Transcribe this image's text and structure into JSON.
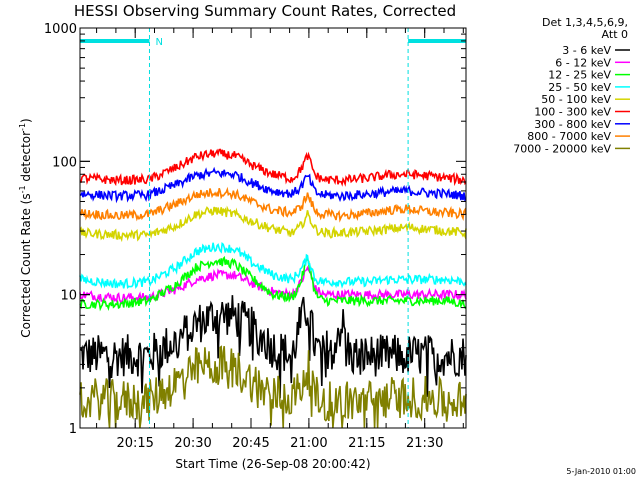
{
  "chart_data": {
    "type": "line",
    "title": "HESSI Observing Summary Count Rates, Corrected",
    "xlabel": "Start Time (26-Sep-08 20:00:42)",
    "ylabel": "Corrected Count Rate (s⁻¹ detector⁻¹)",
    "ylabel_pre": "Corrected Count Rate (s",
    "ylabel_mid": " detector",
    "ylabel_sup": "-1",
    "ylabel_post": ")",
    "yscale": "log",
    "ylim": [
      1,
      1000
    ],
    "xlim_minutes": [
      0,
      100
    ],
    "x_ticks": [
      {
        "label": "20:15",
        "t": 14.3
      },
      {
        "label": "20:30",
        "t": 29.3
      },
      {
        "label": "20:45",
        "t": 44.3
      },
      {
        "label": "21:00",
        "t": 59.3
      },
      {
        "label": "21:15",
        "t": 74.3
      },
      {
        "label": "21:30",
        "t": 89.3
      }
    ],
    "y_ticks": [
      {
        "label": "1",
        "v": 1
      },
      {
        "label": "10",
        "v": 10
      },
      {
        "label": "100",
        "v": 100
      },
      {
        "label": "1000",
        "v": 1000
      }
    ],
    "legend_header": [
      "Det 1,3,4,5,6,9,",
      "Att 0"
    ],
    "legend_position": "right",
    "timestamp": "5-Jan-2010 01:00",
    "night_marker": "N",
    "night_color": "#00e0e0",
    "night_intervals": [
      [
        0,
        18
      ],
      [
        85,
        100
      ]
    ],
    "series": [
      {
        "name": "3 - 6 keV",
        "color": "#000000",
        "x": [
          0,
          10,
          18,
          25,
          30,
          35,
          40,
          45,
          50,
          55,
          57,
          59,
          61,
          63,
          68,
          70,
          75,
          80,
          85,
          90,
          95,
          100
        ],
        "y": [
          3.5,
          3.5,
          3.5,
          4.5,
          6,
          7,
          7,
          5.5,
          4,
          3.5,
          6,
          8,
          4,
          3.5,
          6,
          3.5,
          3.5,
          3.5,
          3.5,
          3.5,
          3.5,
          3.5
        ]
      },
      {
        "name": "6 - 12 keV",
        "color": "#ff00ff",
        "x": [
          0,
          10,
          18,
          25,
          30,
          35,
          40,
          45,
          50,
          55,
          57,
          59,
          61,
          63,
          68,
          75,
          80,
          85,
          90,
          95,
          100
        ],
        "y": [
          10,
          9.5,
          9.5,
          11,
          13,
          14,
          14,
          12,
          10.5,
          10,
          12,
          16,
          11,
          10,
          10,
          10,
          10,
          10,
          10,
          10,
          10
        ]
      },
      {
        "name": "12 - 25 keV",
        "color": "#00ff00",
        "x": [
          0,
          10,
          18,
          25,
          30,
          35,
          40,
          45,
          50,
          55,
          57,
          59,
          61,
          63,
          68,
          75,
          80,
          85,
          90,
          95,
          100
        ],
        "y": [
          8.5,
          8.5,
          9,
          12,
          16,
          18,
          17,
          13,
          10,
          9.5,
          12,
          19,
          10,
          9,
          9,
          9,
          9,
          9,
          9,
          9,
          8.5
        ]
      },
      {
        "name": "25 - 50 keV",
        "color": "#00ffff",
        "x": [
          0,
          10,
          18,
          25,
          30,
          35,
          40,
          45,
          50,
          55,
          57,
          59,
          61,
          63,
          68,
          75,
          80,
          85,
          90,
          95,
          100
        ],
        "y": [
          13,
          12,
          12.5,
          16,
          21,
          23,
          22,
          17,
          14,
          13,
          15,
          19,
          13,
          12.5,
          12.5,
          12.5,
          13,
          13,
          13,
          13,
          12.5
        ]
      },
      {
        "name": "50 - 100 keV",
        "color": "#d4d400",
        "x": [
          0,
          10,
          18,
          25,
          30,
          35,
          40,
          45,
          50,
          55,
          57,
          59,
          61,
          63,
          68,
          75,
          80,
          85,
          90,
          95,
          100
        ],
        "y": [
          29,
          28,
          28,
          33,
          40,
          43,
          40,
          35,
          31,
          29,
          32,
          40,
          31,
          29,
          29,
          30,
          31,
          32,
          31,
          30,
          29
        ]
      },
      {
        "name": "100 - 300 keV",
        "color": "#ff0000",
        "x": [
          0,
          10,
          18,
          25,
          30,
          35,
          40,
          45,
          50,
          55,
          57,
          59,
          61,
          63,
          68,
          75,
          80,
          85,
          90,
          95,
          100
        ],
        "y": [
          75,
          72,
          73,
          90,
          108,
          115,
          110,
          92,
          80,
          74,
          85,
          110,
          78,
          73,
          72,
          75,
          79,
          80,
          78,
          75,
          72
        ]
      },
      {
        "name": "300 - 800 keV",
        "color": "#0000ff",
        "x": [
          0,
          10,
          18,
          25,
          30,
          35,
          40,
          45,
          50,
          55,
          57,
          59,
          61,
          63,
          68,
          75,
          80,
          85,
          90,
          95,
          100
        ],
        "y": [
          57,
          55,
          56,
          67,
          78,
          82,
          80,
          68,
          60,
          57,
          63,
          78,
          58,
          56,
          55,
          57,
          59,
          60,
          58,
          57,
          55
        ]
      },
      {
        "name": "800 - 7000 keV",
        "color": "#ff8000",
        "x": [
          0,
          10,
          18,
          25,
          30,
          35,
          40,
          45,
          50,
          55,
          57,
          59,
          61,
          63,
          68,
          75,
          80,
          85,
          90,
          95,
          100
        ],
        "y": [
          41,
          39,
          40,
          48,
          56,
          59,
          57,
          49,
          43,
          41,
          45,
          56,
          42,
          40,
          39,
          41,
          43,
          44,
          42,
          41,
          40
        ]
      },
      {
        "name": "7000 - 20000 keV",
        "color": "#808000",
        "x": [
          0,
          10,
          18,
          25,
          30,
          35,
          40,
          45,
          50,
          55,
          57,
          59,
          61,
          63,
          68,
          75,
          80,
          85,
          90,
          95,
          100
        ],
        "y": [
          1.7,
          1.6,
          1.6,
          2.2,
          2.8,
          3.0,
          2.8,
          2.2,
          1.8,
          1.7,
          2.0,
          2.8,
          1.7,
          1.6,
          1.6,
          1.6,
          1.7,
          1.7,
          1.7,
          1.6,
          1.6
        ]
      }
    ]
  }
}
